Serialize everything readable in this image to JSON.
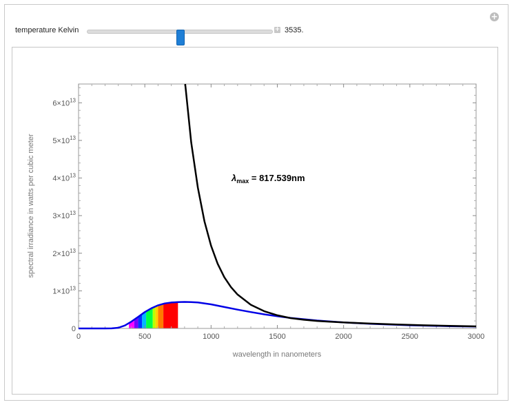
{
  "controls": {
    "label": "temperature Kelvin",
    "value_text": "3535.",
    "value": 3535,
    "fraction": 0.5
  },
  "icons": {
    "corner": "plus-circle-icon",
    "slider_expand": "plus-square-icon"
  },
  "chart_data": {
    "type": "line",
    "xlabel": "wavelength in nanometers",
    "ylabel": "spectral irradiance in watts per cubic meter",
    "xlim": [
      0,
      3000
    ],
    "ylim": [
      0,
      65000000000000.0
    ],
    "x_ticks": [
      0,
      500,
      1000,
      1500,
      2000,
      2500,
      3000
    ],
    "x_tick_labels": [
      "0",
      "500",
      "1000",
      "1500",
      "2000",
      "2500",
      "3000"
    ],
    "y_ticks": [
      0,
      10000000000000.0,
      20000000000000.0,
      30000000000000.0,
      40000000000000.0,
      50000000000000.0,
      60000000000000.0
    ],
    "y_tick_mantissas": [
      "0",
      "1",
      "2",
      "3",
      "4",
      "5",
      "6"
    ],
    "y_tick_exponent": "13",
    "annotation": {
      "symbol": "λ",
      "subscript": "max",
      "text": " = 817.539nm",
      "x": 1150,
      "y": 40000000000000.0
    },
    "series": [
      {
        "color": "#0000e6",
        "x": [
          0,
          200,
          250,
          300,
          350,
          400,
          450,
          500,
          550,
          600,
          650,
          700,
          750,
          800,
          850,
          900,
          1000,
          1100,
          1200,
          1300,
          1400,
          1500,
          1600,
          1800,
          2000,
          2200,
          2500,
          2800,
          3000
        ],
        "y": [
          0,
          1000000000.0,
          20000000000.0,
          190000000000.0,
          790000000000.0,
          1850000000000.0,
          3100000000000.0,
          4350000000000.0,
          5370000000000.0,
          6150000000000.0,
          6650000000000.0,
          6900000000000.0,
          7000000000000.0,
          7050000000000.0,
          7000000000000.0,
          6900000000000.0,
          6400000000000.0,
          5700000000000.0,
          5000000000000.0,
          4350000000000.0,
          3750000000000.0,
          3250000000000.0,
          2800000000000.0,
          2100000000000.0,
          1600000000000.0,
          1250000000000.0,
          850000000000.0,
          600000000000.0,
          500000000000.0
        ]
      },
      {
        "color": "#000000",
        "x": [
          805,
          850,
          900,
          950,
          1000,
          1050,
          1100,
          1150,
          1200,
          1300,
          1400,
          1500,
          1600,
          1700,
          1800,
          1900,
          2000,
          2200,
          2400,
          2600,
          2800,
          3000
        ],
        "y": [
          65000000000000.0,
          49500000000000.0,
          37500000000000.0,
          28500000000000.0,
          22000000000000.0,
          17200000000000.0,
          13600000000000.0,
          11000000000000.0,
          9000000000000.0,
          6300000000000.0,
          4600000000000.0,
          3500000000000.0,
          2750000000000.0,
          2300000000000.0,
          2000000000000.0,
          1780000000000.0,
          1600000000000.0,
          1300000000000.0,
          1050000000000.0,
          850000000000.0,
          680000000000.0,
          550000000000.0
        ]
      }
    ],
    "visible_band_colors": [
      "#ff00ff",
      "#7700ff",
      "#0033ff",
      "#00b7ff",
      "#00ff44",
      "#b8ff00",
      "#ffd000",
      "#ff7a00",
      "#ff0000"
    ],
    "visible_band_edges": [
      380,
      420,
      450,
      480,
      510,
      560,
      580,
      600,
      640,
      750
    ]
  }
}
